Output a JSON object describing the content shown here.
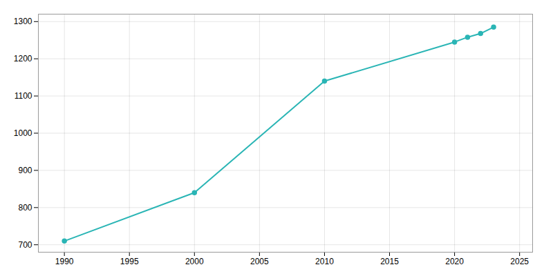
{
  "chart_data": {
    "type": "line",
    "x": [
      1990,
      2000,
      2010,
      2020,
      2021,
      2022,
      2023
    ],
    "values": [
      710,
      840,
      1140,
      1245,
      1258,
      1268,
      1285
    ],
    "color": "#2ab5b5",
    "marker": "circle",
    "xlim": [
      1988,
      2026
    ],
    "ylim": [
      680,
      1320
    ],
    "xticks": [
      1990,
      1995,
      2000,
      2005,
      2010,
      2015,
      2020,
      2025
    ],
    "yticks": [
      700,
      800,
      900,
      1000,
      1100,
      1200,
      1300
    ],
    "grid": true
  }
}
